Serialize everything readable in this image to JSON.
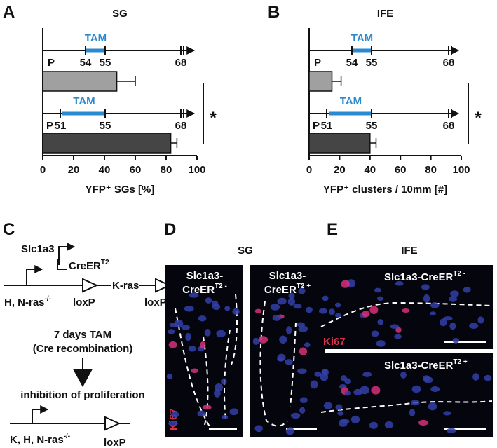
{
  "panel_labels": [
    "A",
    "B",
    "C",
    "D",
    "E"
  ],
  "chart_data": [
    {
      "type": "bar",
      "orientation": "horizontal",
      "title": "SG",
      "xlabel": "YFP⁺ SGs [%]",
      "values": [
        48,
        83
      ],
      "errors": [
        12,
        4
      ],
      "colors": [
        "#a0a0a0",
        "#454545"
      ],
      "xlim": [
        0,
        100
      ],
      "xticks": [
        0,
        20,
        40,
        60,
        80,
        100
      ],
      "significance": "*",
      "timelines": [
        {
          "treatment": "TAM",
          "days": [
            "P",
            "54",
            "55",
            "68"
          ]
        },
        {
          "treatment": "TAM",
          "days": [
            "P",
            "51",
            "55",
            "68"
          ]
        }
      ]
    },
    {
      "type": "bar",
      "orientation": "horizontal",
      "title": "IFE",
      "xlabel": "YFP⁺ clusters / 10mm [#]",
      "values": [
        15,
        40
      ],
      "errors": [
        6,
        4
      ],
      "colors": [
        "#a0a0a0",
        "#454545"
      ],
      "xlim": [
        0,
        100
      ],
      "xticks": [
        0,
        20,
        40,
        60,
        80,
        100
      ],
      "significance": "*",
      "timelines": [
        {
          "treatment": "TAM",
          "days": [
            "P",
            "54",
            "55",
            "68"
          ]
        },
        {
          "treatment": "TAM",
          "days": [
            "P",
            "51",
            "55",
            "68"
          ]
        }
      ]
    }
  ],
  "panel_c": {
    "gene": "Slc1a3",
    "driver": "CreER",
    "driver_sup": "T2",
    "allele": "H, N-ras",
    "allele_sup": "-/-",
    "lox1": "loxP",
    "target": "K-ras",
    "lox2": "loxP",
    "step1": "7 days TAM",
    "step2": "(Cre recombination)",
    "result": "inhibition of proliferation",
    "final_allele": "K, H, N-ras",
    "final_sup": "-/-",
    "final_lox": "loxP"
  },
  "panel_d": {
    "title": "SG",
    "left_line1": "Slc1a3-",
    "left_line2": "CreER",
    "left_sup": "T2 -",
    "right_line1": "Slc1a3-",
    "right_line2": "CreER",
    "right_sup": "T2 +",
    "stain": "Ki67"
  },
  "panel_e": {
    "title": "IFE",
    "top_label": "Slc1a3-CreER",
    "top_sup": "T2 -",
    "stain": "Ki67",
    "bottom_label": "Slc1a3-CreER",
    "bottom_sup": "T2 +"
  }
}
